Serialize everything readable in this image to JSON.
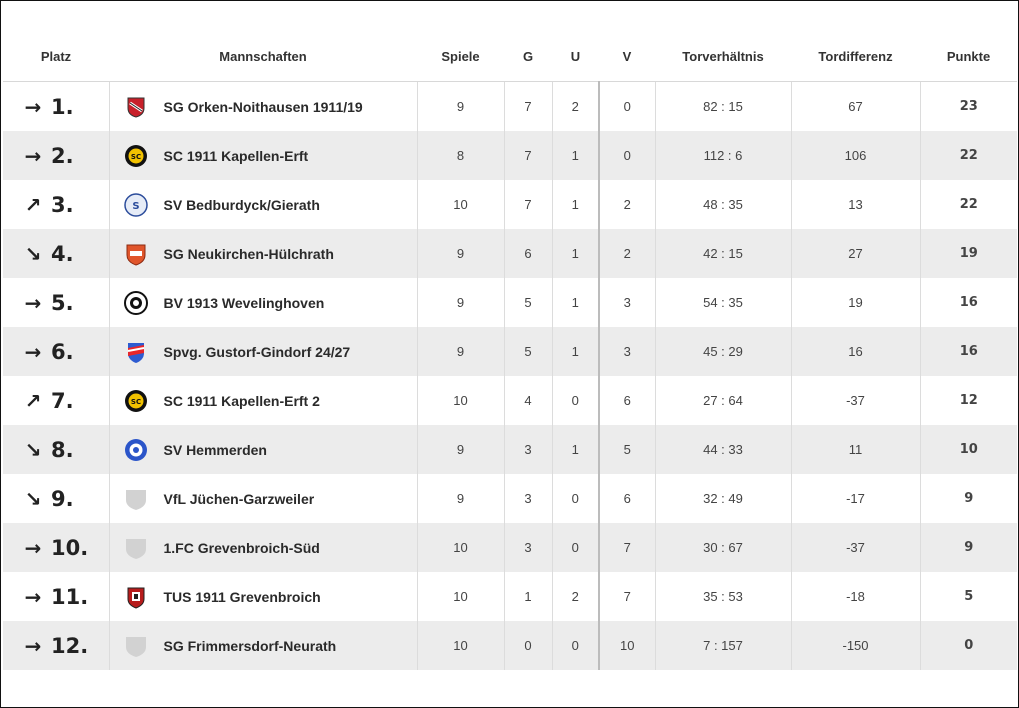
{
  "table": {
    "headers": {
      "platz": "Platz",
      "mannschaften": "Mannschaften",
      "spiele": "Spiele",
      "g": "G",
      "u": "U",
      "v": "V",
      "torverhaeltnis": "Torverhältnis",
      "tordifferenz": "Tordifferenz",
      "punkte": "Punkte"
    },
    "rows": [
      {
        "trend": "→",
        "trend_icon": "arrow-right-icon",
        "rank": "1.",
        "team": "SG Orken-Noithausen 1911/19",
        "crest": "crest-orken-icon",
        "spiele": "9",
        "g": "7",
        "u": "2",
        "v": "0",
        "tore": "82 : 15",
        "diff": "67",
        "punkte": "23"
      },
      {
        "trend": "→",
        "trend_icon": "arrow-right-icon",
        "rank": "2.",
        "team": "SC 1911 Kapellen-Erft",
        "crest": "crest-kapellen-icon",
        "spiele": "8",
        "g": "7",
        "u": "1",
        "v": "0",
        "tore": "112 : 6",
        "diff": "106",
        "punkte": "22"
      },
      {
        "trend": "↗",
        "trend_icon": "arrow-up-right-icon",
        "rank": "3.",
        "team": "SV Bedburdyck/Gierath",
        "crest": "crest-bedburdyck-icon",
        "spiele": "10",
        "g": "7",
        "u": "1",
        "v": "2",
        "tore": "48 : 35",
        "diff": "13",
        "punkte": "22"
      },
      {
        "trend": "↘",
        "trend_icon": "arrow-down-right-icon",
        "rank": "4.",
        "team": "SG Neukirchen-Hülchrath",
        "crest": "crest-neukirchen-icon",
        "spiele": "9",
        "g": "6",
        "u": "1",
        "v": "2",
        "tore": "42 : 15",
        "diff": "27",
        "punkte": "19"
      },
      {
        "trend": "→",
        "trend_icon": "arrow-right-icon",
        "rank": "5.",
        "team": "BV 1913 Wevelinghoven",
        "crest": "crest-wevelinghoven-icon",
        "spiele": "9",
        "g": "5",
        "u": "1",
        "v": "3",
        "tore": "54 : 35",
        "diff": "19",
        "punkte": "16"
      },
      {
        "trend": "→",
        "trend_icon": "arrow-right-icon",
        "rank": "6.",
        "team": "Spvg. Gustorf-Gindorf 24/27",
        "crest": "crest-gustorf-icon",
        "spiele": "9",
        "g": "5",
        "u": "1",
        "v": "3",
        "tore": "45 : 29",
        "diff": "16",
        "punkte": "16"
      },
      {
        "trend": "↗",
        "trend_icon": "arrow-up-right-icon",
        "rank": "7.",
        "team": "SC 1911 Kapellen-Erft 2",
        "crest": "crest-kapellen-icon",
        "spiele": "10",
        "g": "4",
        "u": "0",
        "v": "6",
        "tore": "27 : 64",
        "diff": "-37",
        "punkte": "12"
      },
      {
        "trend": "↘",
        "trend_icon": "arrow-down-right-icon",
        "rank": "8.",
        "team": "SV Hemmerden",
        "crest": "crest-hemmerden-icon",
        "spiele": "9",
        "g": "3",
        "u": "1",
        "v": "5",
        "tore": "44 : 33",
        "diff": "11",
        "punkte": "10"
      },
      {
        "trend": "↘",
        "trend_icon": "arrow-down-right-icon",
        "rank": "9.",
        "team": "VfL Jüchen-Garzweiler",
        "crest": "crest-placeholder-icon",
        "spiele": "9",
        "g": "3",
        "u": "0",
        "v": "6",
        "tore": "32 : 49",
        "diff": "-17",
        "punkte": "9"
      },
      {
        "trend": "→",
        "trend_icon": "arrow-right-icon",
        "rank": "10.",
        "team": "1.FC Grevenbroich-Süd",
        "crest": "crest-placeholder-icon",
        "spiele": "10",
        "g": "3",
        "u": "0",
        "v": "7",
        "tore": "30 : 67",
        "diff": "-37",
        "punkte": "9"
      },
      {
        "trend": "→",
        "trend_icon": "arrow-right-icon",
        "rank": "11.",
        "team": "TUS 1911 Grevenbroich",
        "crest": "crest-grevenbroich-icon",
        "spiele": "10",
        "g": "1",
        "u": "2",
        "v": "7",
        "tore": "35 : 53",
        "diff": "-18",
        "punkte": "5"
      },
      {
        "trend": "→",
        "trend_icon": "arrow-right-icon",
        "rank": "12.",
        "team": "SG Frimmersdorf-Neurath",
        "crest": "crest-placeholder-icon",
        "spiele": "10",
        "g": "0",
        "u": "0",
        "v": "10",
        "tore": "7 : 157",
        "diff": "-150",
        "punkte": "0"
      }
    ]
  }
}
